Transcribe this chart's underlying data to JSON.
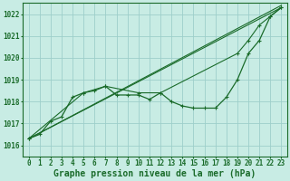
{
  "title": "Graphe pression niveau de la mer (hPa)",
  "bg_color": "#c8ece4",
  "grid_color": "#9ecfca",
  "line_color": "#1a6b2a",
  "text_color": "#1a6b2a",
  "ylim": [
    1015.5,
    1022.5
  ],
  "xlim": [
    -0.5,
    23.5
  ],
  "yticks": [
    1016,
    1017,
    1018,
    1019,
    1020,
    1021,
    1022
  ],
  "xticks": [
    0,
    1,
    2,
    3,
    4,
    5,
    6,
    7,
    8,
    9,
    10,
    11,
    12,
    13,
    14,
    15,
    16,
    17,
    18,
    19,
    20,
    21,
    22,
    23
  ],
  "series_straight1": [
    [
      0,
      23
    ],
    [
      1016.3,
      1022.3
    ]
  ],
  "series_straight2": [
    [
      0,
      23
    ],
    [
      1016.3,
      1022.4
    ]
  ],
  "series_diagonal": {
    "x": [
      0,
      5,
      7,
      10,
      12,
      19,
      20,
      21,
      22,
      23
    ],
    "y": [
      1016.3,
      1018.4,
      1018.7,
      1018.4,
      1018.4,
      1020.2,
      1020.8,
      1021.5,
      1021.9,
      1022.3
    ]
  },
  "series_wavy": {
    "x": [
      0,
      1,
      2,
      3,
      4,
      5,
      6,
      7,
      8,
      9,
      10,
      11,
      12,
      13,
      14,
      15,
      16,
      17,
      18,
      19,
      20,
      21,
      22,
      23
    ],
    "y": [
      1016.3,
      1016.5,
      1017.1,
      1017.3,
      1018.2,
      1018.4,
      1018.5,
      1018.7,
      1018.3,
      1018.3,
      1018.3,
      1018.1,
      1018.4,
      1018.0,
      1017.8,
      1017.7,
      1017.7,
      1017.7,
      1018.2,
      1019.0,
      1020.2,
      1020.8,
      1021.9,
      1022.3
    ]
  },
  "font_size_label": 7.0,
  "font_size_tick": 5.5
}
